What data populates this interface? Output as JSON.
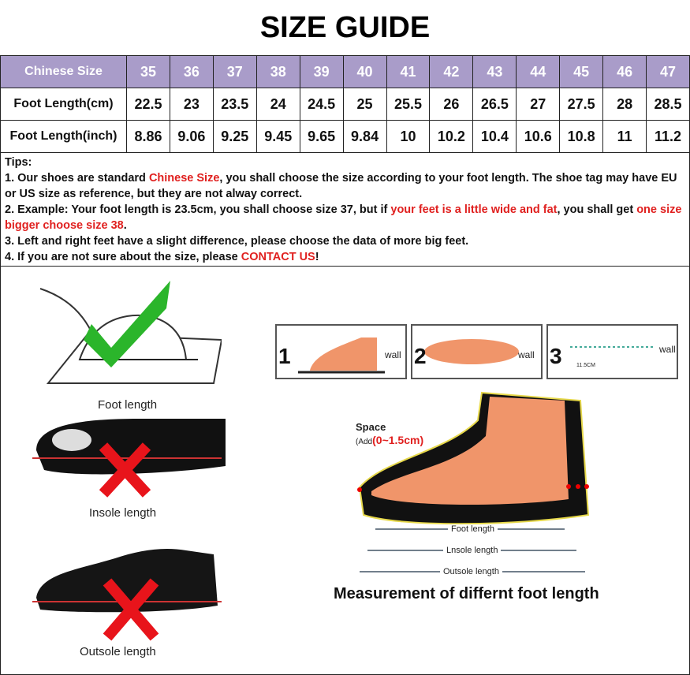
{
  "title": "SIZE GUIDE",
  "table": {
    "header": {
      "label": "Chinese Size",
      "values": [
        "35",
        "36",
        "37",
        "38",
        "39",
        "40",
        "41",
        "42",
        "43",
        "44",
        "45",
        "46",
        "47"
      ]
    },
    "rows": [
      {
        "label": "Foot Length(cm)",
        "values": [
          "22.5",
          "23",
          "23.5",
          "24",
          "24.5",
          "25",
          "25.5",
          "26",
          "26.5",
          "27",
          "27.5",
          "28",
          "28.5"
        ]
      },
      {
        "label": "Foot Length(inch)",
        "values": [
          "8.86",
          "9.06",
          "9.25",
          "9.45",
          "9.65",
          "9.84",
          "10",
          "10.2",
          "10.4",
          "10.6",
          "10.8",
          "11",
          "11.2"
        ]
      }
    ]
  },
  "tips": {
    "heading": "Tips:",
    "t1a": "1. Our shoes are standard ",
    "t1b": "Chinese Size",
    "t1c": ", you shall choose the size according to your foot length. The shoe tag may have EU or US size as reference, but they are not alway correct.",
    "t2a": "2. Example: Your foot length is 23.5cm, you shall choose size 37, but if ",
    "t2b": "your feet is a little wide and fat",
    "t2c": ", you shall get ",
    "t2d": "one size bigger choose size 38",
    "t2e": ".",
    "t3": "3. Left and right feet have a slight difference, please choose the data of more big feet.",
    "t4a": "4. If you are not sure about the size, please ",
    "t4b": "CONTACT US",
    "t4c": "!"
  },
  "illustrations": {
    "foot_length": "Foot length",
    "insole_length": "Insole length",
    "outsole_length": "Outsole length",
    "steps": [
      "1",
      "2",
      "3"
    ],
    "wall": "wall",
    "step3_tag": "11.5CM",
    "space": "Space",
    "space_add": "(Add",
    "space_range": "(0~1.5cm)",
    "diagram_foot": "Foot length",
    "diagram_insole": "Lnsole length",
    "diagram_outsole": "Outsole length",
    "diagram_title": "Measurement of differnt foot length"
  },
  "colors": {
    "header_bg": "#a99cc9",
    "highlight": "#e0201f",
    "check": "#2bb52b",
    "cross": "#e8141b"
  }
}
